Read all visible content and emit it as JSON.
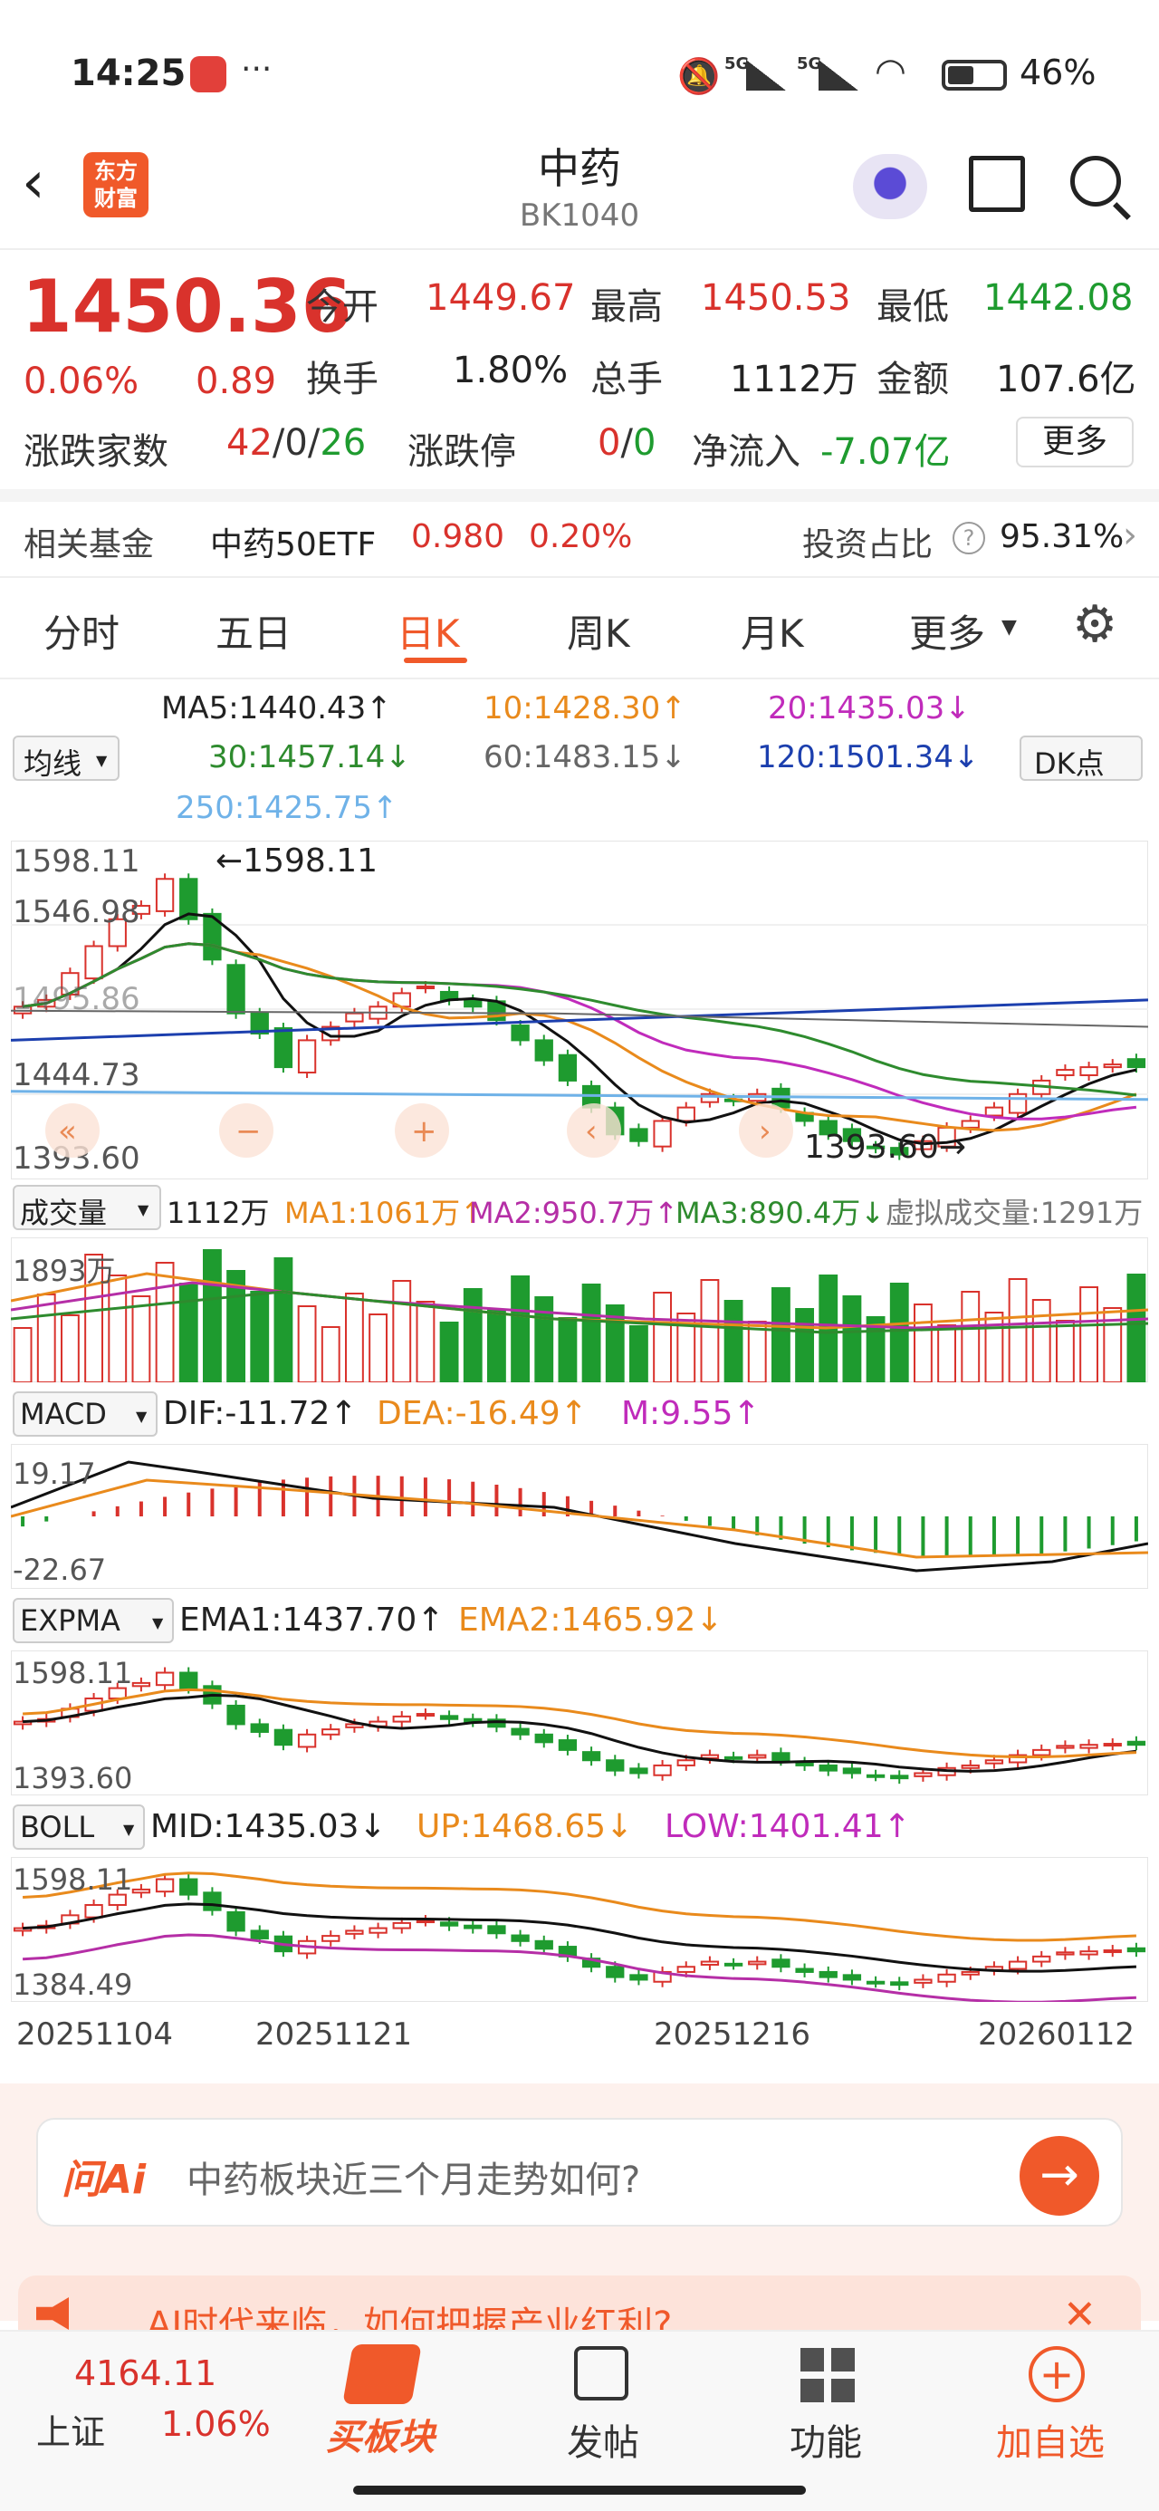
{
  "status_bar": {
    "time": "14:25",
    "dots": "···",
    "signal1": "5G",
    "signal2": "5G",
    "battery": "46%"
  },
  "header": {
    "logo_line1": "东方",
    "logo_line2": "财富",
    "title": "中药",
    "code": "BK1040"
  },
  "quote": {
    "price": "1450.36",
    "change_pct": "0.06%",
    "change": "0.89",
    "open_label": "今开",
    "open": "1449.67",
    "high_label": "最高",
    "high": "1450.53",
    "low_label": "最低",
    "low": "1442.08",
    "turnover_label": "换手",
    "turnover": "1.80%",
    "volume_label": "总手",
    "volume": "1112万",
    "amount_label": "金额",
    "amount": "107.6亿",
    "updown_label": "涨跌家数",
    "up": "42",
    "flat": "0",
    "down": "26",
    "limit_label": "涨跌停",
    "limit_up": "0",
    "limit_down": "0",
    "inflow_label": "净流入",
    "inflow": "-7.07亿",
    "more": "更多",
    "slash": "/"
  },
  "fund": {
    "label": "相关基金",
    "name": "中药50ETF",
    "price": "0.980",
    "pct": "0.20%",
    "ratio_label": "投资占比",
    "ratio": "95.31%"
  },
  "tabs": [
    "分时",
    "五日",
    "日K",
    "周K",
    "月K",
    "更多"
  ],
  "ma": {
    "selector": "均线",
    "ma5": "MA5:1440.43↑",
    "ma10": "10:1428.30↑",
    "ma20": "20:1435.03↓",
    "ma30": "30:1457.14↓",
    "ma60": "60:1483.15↓",
    "ma120": "120:1501.34↓",
    "ma250": "250:1425.75↑",
    "dk": "DK点"
  },
  "kchart": {
    "y_top": "1598.11",
    "y_2": "1546.98",
    "y_3": "1495.86",
    "y_4": "1444.73",
    "y_bottom": "1393.60",
    "high_mark": "←1598.11",
    "low_mark": "1393.60→"
  },
  "volume": {
    "selector": "成交量",
    "value": "1112万",
    "ma1": "MA1:1061万↑",
    "ma2": "MA2:950.7万↑",
    "ma3": "MA3:890.4万↓",
    "virtual": "虚拟成交量:1291万",
    "y_top": "1893万"
  },
  "macd": {
    "selector": "MACD",
    "dif": "DIF:-11.72↑",
    "dea": "DEA:-16.49↑",
    "m": "M:9.55↑",
    "y_top": "19.17",
    "y_bottom": "-22.67"
  },
  "expma": {
    "selector": "EXPMA",
    "ema1": "EMA1:1437.70↑",
    "ema2": "EMA2:1465.92↓",
    "y_top": "1598.11",
    "y_bottom": "1393.60"
  },
  "boll": {
    "selector": "BOLL",
    "mid": "MID:1435.03↓",
    "up": "UP:1468.65↓",
    "low": "LOW:1401.41↑",
    "y_top": "1598.11",
    "y_bottom": "1384.49"
  },
  "dates": [
    "20251104",
    "20251121",
    "20251216",
    "20260112"
  ],
  "ai": {
    "logo": "问Ai",
    "question": "中药板块近三个月走势如何?",
    "banner": "AI时代来临，如何把握产业红利?"
  },
  "bottom_nav": {
    "index_value": "4164.11",
    "index_name": "上证",
    "index_pct": "1.06%",
    "buy": "买板块",
    "post": "发帖",
    "func": "功能",
    "add": "加自选"
  },
  "colors": {
    "up": "#d9322c",
    "down": "#1e9b2f",
    "accent": "#f0592a"
  }
}
